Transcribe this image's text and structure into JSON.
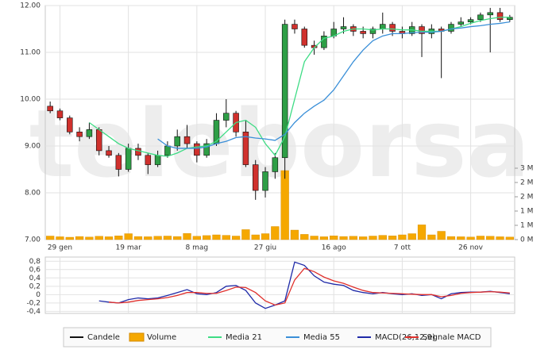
{
  "watermark": "teleborsa",
  "chart_data": [
    {
      "type": "candlestick",
      "categories": [
        null,
        "29 gen",
        null,
        null,
        null,
        null,
        null,
        null,
        "19 mar",
        null,
        null,
        null,
        null,
        null,
        null,
        "8 mag",
        null,
        null,
        null,
        null,
        null,
        null,
        "27 giu",
        null,
        null,
        null,
        null,
        null,
        null,
        "16 ago",
        null,
        null,
        null,
        null,
        null,
        null,
        "7 ott",
        null,
        null,
        null,
        null,
        null,
        null,
        "26 nov",
        null,
        null,
        null,
        null
      ],
      "up_color": "#2e9e46",
      "down_color": "#d0312d",
      "series": [
        {
          "name": "Candele",
          "color": "#111111",
          "open": [
            9.85,
            9.75,
            9.6,
            9.3,
            9.2,
            9.35,
            8.9,
            8.8,
            8.5,
            8.95,
            8.8,
            8.6,
            8.8,
            9.0,
            9.2,
            9.05,
            8.8,
            9.05,
            9.55,
            9.7,
            9.3,
            8.6,
            8.05,
            8.45,
            8.75,
            11.6,
            11.5,
            11.15,
            11.1,
            11.35,
            11.5,
            11.55,
            11.45,
            11.4,
            11.5,
            11.6,
            11.45,
            11.4,
            11.55,
            11.4,
            11.5,
            11.45,
            11.6,
            11.65,
            11.7,
            11.8,
            11.85,
            11.7
          ],
          "high": [
            9.95,
            9.8,
            9.65,
            9.4,
            9.5,
            9.4,
            9.0,
            8.85,
            9.05,
            9.05,
            8.85,
            8.9,
            9.1,
            9.35,
            9.45,
            9.1,
            9.15,
            9.7,
            10.0,
            9.75,
            9.55,
            8.7,
            8.55,
            8.85,
            11.7,
            11.7,
            11.55,
            11.25,
            11.45,
            11.65,
            11.75,
            11.6,
            11.55,
            11.55,
            11.85,
            11.65,
            11.55,
            11.65,
            11.6,
            11.6,
            11.55,
            11.65,
            11.75,
            11.75,
            11.85,
            11.95,
            11.95,
            11.8
          ],
          "low": [
            9.7,
            9.55,
            9.25,
            9.1,
            9.15,
            8.8,
            8.75,
            8.35,
            8.45,
            8.7,
            8.4,
            8.55,
            8.75,
            8.9,
            8.95,
            8.65,
            8.75,
            9.0,
            9.4,
            9.2,
            8.55,
            7.85,
            7.9,
            8.3,
            8.3,
            11.4,
            11.1,
            10.95,
            11.05,
            11.3,
            11.4,
            11.35,
            11.3,
            11.3,
            11.4,
            11.35,
            11.3,
            11.35,
            10.9,
            11.3,
            10.45,
            11.4,
            11.55,
            11.6,
            11.65,
            11.0,
            11.65,
            11.65
          ],
          "close": [
            9.75,
            9.6,
            9.3,
            9.2,
            9.35,
            8.9,
            8.8,
            8.5,
            8.95,
            8.8,
            8.6,
            8.8,
            9.0,
            9.2,
            9.05,
            8.8,
            9.05,
            9.55,
            9.7,
            9.3,
            8.6,
            8.05,
            8.45,
            8.75,
            11.6,
            11.5,
            11.15,
            11.1,
            11.35,
            11.5,
            11.55,
            11.45,
            11.4,
            11.5,
            11.6,
            11.45,
            11.4,
            11.55,
            11.4,
            11.5,
            11.45,
            11.6,
            11.65,
            11.7,
            11.8,
            11.85,
            11.7,
            11.75
          ]
        },
        {
          "name": "Volume",
          "color": "#f5a800",
          "axis": "y2",
          "values": [
            150000,
            120000,
            100000,
            130000,
            110000,
            140000,
            120000,
            160000,
            250000,
            130000,
            120000,
            140000,
            150000,
            130000,
            260000,
            140000,
            170000,
            200000,
            180000,
            150000,
            420000,
            200000,
            250000,
            550000,
            2900000,
            400000,
            220000,
            150000,
            120000,
            160000,
            130000,
            140000,
            120000,
            150000,
            180000,
            160000,
            200000,
            250000,
            620000,
            200000,
            350000,
            130000,
            120000,
            110000,
            150000,
            140000,
            120000,
            110000
          ]
        },
        {
          "name": "Media 21",
          "color": "#3ddc84",
          "values": [
            null,
            null,
            null,
            null,
            9.5,
            9.35,
            9.2,
            9.05,
            8.95,
            8.9,
            8.85,
            8.8,
            8.78,
            8.85,
            8.95,
            8.98,
            9.0,
            9.1,
            9.3,
            9.5,
            9.55,
            9.4,
            9.05,
            8.8,
            9.2,
            10.0,
            10.8,
            11.1,
            11.3,
            11.35,
            11.45,
            11.5,
            11.5,
            11.48,
            11.5,
            11.5,
            11.48,
            11.48,
            11.45,
            11.45,
            11.45,
            11.5,
            11.55,
            11.62,
            11.68,
            11.72,
            11.75,
            11.75
          ]
        },
        {
          "name": "Media 55",
          "color": "#3a8fd8",
          "values": [
            null,
            null,
            null,
            null,
            null,
            null,
            null,
            null,
            null,
            null,
            null,
            9.15,
            9.0,
            8.95,
            8.95,
            8.95,
            8.98,
            9.05,
            9.1,
            9.18,
            9.2,
            9.17,
            9.15,
            9.12,
            9.25,
            9.5,
            9.7,
            9.85,
            9.98,
            10.2,
            10.5,
            10.8,
            11.05,
            11.25,
            11.35,
            11.4,
            11.4,
            11.42,
            11.43,
            11.43,
            11.45,
            11.5,
            11.52,
            11.55,
            11.57,
            11.6,
            11.62,
            11.65
          ]
        }
      ],
      "ylim": [
        7,
        12
      ],
      "yticks": [
        {
          "value": 7,
          "label": "7.00"
        },
        {
          "value": 8,
          "label": "8.00"
        },
        {
          "value": 9,
          "label": "9.00"
        },
        {
          "value": 10,
          "label": "10.00"
        },
        {
          "value": 11,
          "label": "11.00"
        },
        {
          "value": 12,
          "label": "12.00"
        }
      ],
      "y2lim": [
        0,
        3000000
      ],
      "y2ticks": [
        {
          "value": 0,
          "label": "0 M"
        },
        {
          "value": 600000,
          "label": "1 M"
        },
        {
          "value": 1200000,
          "label": "1 M"
        },
        {
          "value": 1800000,
          "label": "2 M"
        },
        {
          "value": 2400000,
          "label": "2 M"
        },
        {
          "value": 3000000,
          "label": "3 M"
        }
      ],
      "grid": true
    },
    {
      "type": "line",
      "series": [
        {
          "name": "MACD(26,12,9)",
          "color": "#1f2aa8",
          "values": [
            null,
            null,
            null,
            null,
            null,
            -0.15,
            -0.18,
            -0.2,
            -0.12,
            -0.08,
            -0.1,
            -0.08,
            -0.02,
            0.05,
            0.12,
            0.02,
            0.0,
            0.05,
            0.2,
            0.22,
            0.1,
            -0.2,
            -0.33,
            -0.25,
            -0.15,
            0.78,
            0.7,
            0.45,
            0.3,
            0.25,
            0.22,
            0.1,
            0.05,
            0.02,
            0.05,
            0.02,
            0.0,
            0.02,
            -0.02,
            0.0,
            -0.1,
            0.02,
            0.05,
            0.06,
            0.06,
            0.08,
            0.05,
            0.02
          ]
        },
        {
          "name": "Segnale MACD",
          "color": "#e0302c",
          "values": [
            null,
            null,
            null,
            null,
            null,
            null,
            -0.18,
            -0.2,
            -0.18,
            -0.14,
            -0.12,
            -0.1,
            -0.07,
            -0.02,
            0.05,
            0.05,
            0.03,
            0.03,
            0.1,
            0.18,
            0.17,
            0.05,
            -0.15,
            -0.25,
            -0.2,
            0.35,
            0.63,
            0.55,
            0.42,
            0.33,
            0.27,
            0.18,
            0.1,
            0.05,
            0.04,
            0.03,
            0.02,
            0.01,
            0.0,
            0.0,
            -0.05,
            -0.02,
            0.03,
            0.05,
            0.06,
            0.07,
            0.06,
            0.04
          ]
        }
      ],
      "ylim": [
        -0.45,
        0.9
      ],
      "yticks": [
        {
          "value": -0.4,
          "label": "-0,4"
        },
        {
          "value": -0.2,
          "label": "-0,2"
        },
        0,
        {
          "value": 0.2,
          "label": "0,2"
        },
        {
          "value": 0.4,
          "label": "0,4"
        },
        {
          "value": 0.6,
          "label": "0,6"
        },
        {
          "value": 0.8,
          "label": "0,8"
        }
      ],
      "grid": true
    }
  ]
}
